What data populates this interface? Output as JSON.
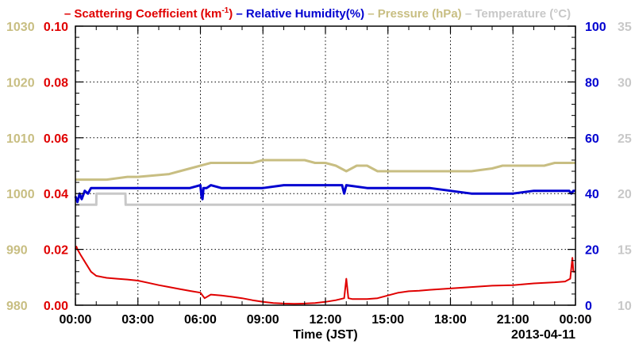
{
  "chart_data": {
    "type": "line",
    "xlabel": "Time (JST)",
    "date_label": "2013-04-11",
    "x_ticks": [
      "00:00",
      "03:00",
      "06:00",
      "09:00",
      "12:00",
      "15:00",
      "18:00",
      "21:00",
      "00:00"
    ],
    "xlim_hours": [
      0,
      24
    ],
    "grid": true,
    "legend": {
      "placement": "top",
      "entries": [
        {
          "key": "scat",
          "prefix": "– Scattering Coefficient (km",
          "sup": "-1",
          "suffix": ")",
          "color": "#e00000"
        },
        {
          "key": "rh",
          "text": "– Relative Humidity(%)",
          "color": "#0000d0"
        },
        {
          "key": "pres",
          "text": "– Pressure (hPa)",
          "color": "#c8be82"
        },
        {
          "key": "temp",
          "text": "– Temperature (°C)",
          "color": "#c8c8c8"
        }
      ]
    },
    "axes": {
      "scat": {
        "side": "left-inner",
        "ylim": [
          0,
          0.1
        ],
        "ticks": [
          "0.00",
          "0.02",
          "0.04",
          "0.06",
          "0.08",
          "0.10"
        ],
        "color": "#e00000"
      },
      "pres": {
        "side": "left-outer",
        "ylim": [
          980,
          1030
        ],
        "ticks": [
          "980",
          "990",
          "1000",
          "1010",
          "1020",
          "1030"
        ],
        "color": "#c8be82"
      },
      "rh": {
        "side": "right-inner",
        "ylim": [
          0,
          100
        ],
        "ticks": [
          "0",
          "20",
          "40",
          "60",
          "80",
          "100"
        ],
        "color": "#0000d0"
      },
      "temp": {
        "side": "right-outer",
        "ylim": [
          10,
          35
        ],
        "ticks": [
          "10",
          "15",
          "20",
          "25",
          "30",
          "35"
        ],
        "color": "#c8c8c8"
      }
    },
    "series": [
      {
        "name": "Scattering Coefficient (km-1)",
        "axis": "scat",
        "x": [
          0,
          0.05,
          0.1,
          0.25,
          0.5,
          0.75,
          1,
          1.5,
          2,
          2.5,
          3,
          3.5,
          4,
          4.5,
          5,
          5.5,
          6,
          6.2,
          6.5,
          7,
          7.5,
          8,
          8.5,
          9,
          9.5,
          10,
          10.5,
          11,
          11.5,
          12,
          12.5,
          12.9,
          13,
          13.1,
          13.3,
          14,
          14.5,
          15,
          15.5,
          16,
          16.5,
          17,
          18,
          19,
          20,
          21,
          22,
          23,
          23.5,
          23.75,
          23.85,
          23.9,
          24
        ],
        "values": [
          0.02,
          0.021,
          0.02,
          0.018,
          0.015,
          0.012,
          0.0105,
          0.0098,
          0.0095,
          0.0092,
          0.0088,
          0.008,
          0.0072,
          0.0065,
          0.0058,
          0.0051,
          0.0045,
          0.0025,
          0.0038,
          0.0035,
          0.003,
          0.0025,
          0.0018,
          0.0012,
          0.0008,
          0.0006,
          0.0005,
          0.0006,
          0.0008,
          0.0012,
          0.0018,
          0.0025,
          0.0095,
          0.0025,
          0.0022,
          0.0022,
          0.0025,
          0.0035,
          0.0045,
          0.005,
          0.0052,
          0.0055,
          0.006,
          0.0065,
          0.007,
          0.0072,
          0.0078,
          0.0082,
          0.0085,
          0.0095,
          0.017,
          0.012,
          0.012
        ]
      },
      {
        "name": "Relative Humidity(%)",
        "axis": "rh",
        "x": [
          0,
          0.1,
          0.2,
          0.3,
          0.45,
          0.6,
          0.75,
          1,
          2,
          3,
          4,
          5,
          5.5,
          6,
          6.05,
          6.1,
          6.15,
          6.2,
          6.3,
          6.5,
          7,
          8,
          9,
          10,
          11,
          12,
          12.7,
          12.8,
          12.9,
          13,
          14,
          15,
          16,
          17,
          18,
          19,
          20,
          21,
          22,
          23,
          23.7,
          23.8,
          23.9,
          24
        ],
        "values": [
          39,
          37,
          40,
          38,
          41,
          40,
          42,
          42,
          42,
          42,
          42,
          42,
          42,
          43,
          39,
          38,
          42,
          42,
          42,
          43,
          42,
          42,
          42,
          43,
          43,
          43,
          43,
          43,
          40,
          43,
          42,
          42,
          42,
          42,
          41,
          40,
          40,
          40,
          41,
          41,
          41,
          40,
          41,
          41
        ]
      },
      {
        "name": "Pressure (hPa)",
        "axis": "pres",
        "x": [
          0,
          1.5,
          2.5,
          3,
          4.5,
          5,
          5.5,
          6,
          6.5,
          7,
          7.5,
          8,
          8.5,
          9,
          9.5,
          10,
          10.5,
          11,
          11.5,
          12,
          12.5,
          13,
          13.5,
          14,
          14.5,
          15,
          15.5,
          16,
          17,
          18,
          19,
          20,
          20.5,
          21,
          21.5,
          22,
          22.5,
          23,
          23.5,
          24
        ],
        "values": [
          1002.5,
          1002.5,
          1003,
          1003,
          1003.5,
          1004,
          1004.5,
          1005,
          1005.5,
          1005.5,
          1005.5,
          1005.5,
          1005.5,
          1006,
          1006,
          1006,
          1006,
          1006,
          1005.5,
          1005.5,
          1005,
          1004,
          1005,
          1005,
          1004,
          1004,
          1004,
          1004,
          1004,
          1004,
          1004,
          1004.5,
          1005,
          1005,
          1005,
          1005,
          1005,
          1005.5,
          1005.5,
          1005.5
        ]
      },
      {
        "name": "Temperature (°C)",
        "axis": "temp",
        "x": [
          0,
          0.5,
          1,
          1.01,
          1.5,
          2,
          2.4,
          2.41,
          3,
          6,
          9,
          12,
          15,
          18,
          21,
          24
        ],
        "values": [
          19,
          19,
          19,
          20,
          20,
          20,
          20,
          19,
          19,
          19,
          19,
          19,
          19,
          19,
          19,
          19
        ]
      }
    ]
  }
}
